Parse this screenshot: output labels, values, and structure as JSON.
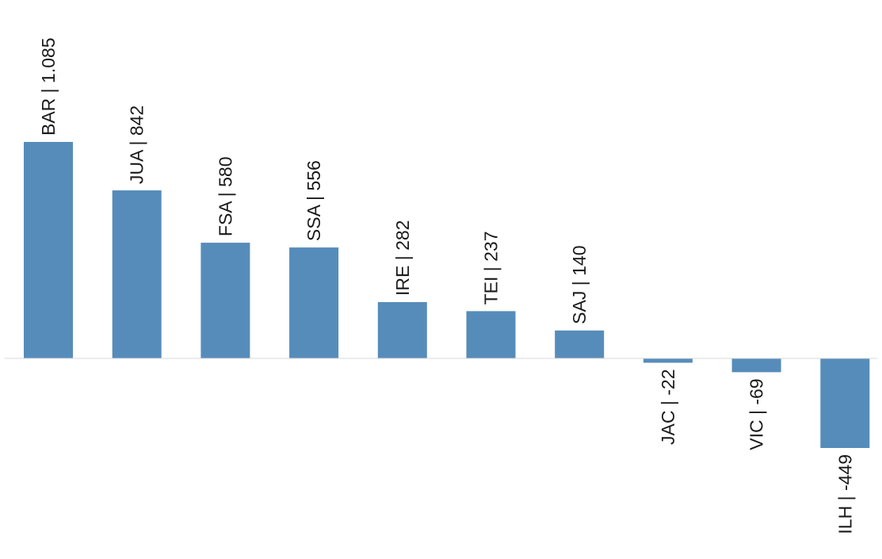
{
  "chart_data": {
    "type": "bar",
    "title": "",
    "xlabel": "",
    "ylabel": "",
    "categories": [
      "BAR",
      "JUA",
      "FSA",
      "SSA",
      "IRE",
      "TEI",
      "SAJ",
      "JAC",
      "VIC",
      "ILH"
    ],
    "values": [
      1085,
      842,
      580,
      556,
      282,
      237,
      140,
      -22,
      -69,
      -449
    ],
    "labels": [
      "BAR | 1.085",
      "JUA | 842",
      "FSA | 580",
      "SSA | 556",
      "IRE | 282",
      "TEI | 237",
      "SAJ | 140",
      "JAC | -22",
      "VIC | -69",
      "ILH | -449"
    ],
    "bar_color": "#568cba",
    "axis_color": "#d9d9d9",
    "grid": false,
    "legend": "none"
  }
}
